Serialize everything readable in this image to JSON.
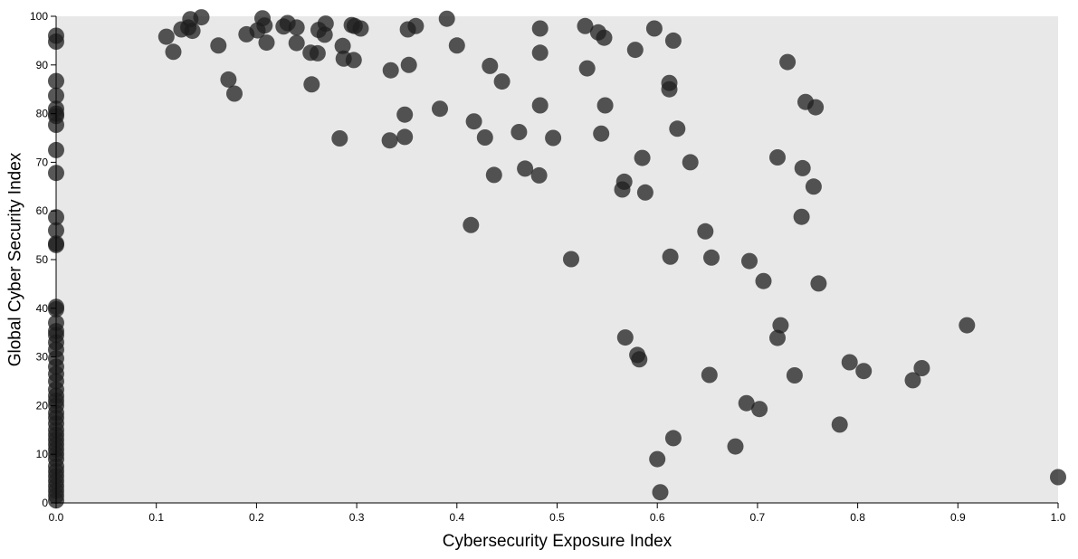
{
  "chart_data": {
    "type": "scatter",
    "xlabel": "Cybersecurity Exposure Index",
    "ylabel": "Global Cyber Security Index",
    "xlim": [
      0,
      1
    ],
    "ylim": [
      0,
      100
    ],
    "x_ticks": [
      "0.0",
      "0.1",
      "0.2",
      "0.3",
      "0.4",
      "0.5",
      "0.6",
      "0.7",
      "0.8",
      "0.9",
      "1.0"
    ],
    "y_ticks": [
      "0",
      "10",
      "20",
      "30",
      "40",
      "50",
      "60",
      "70",
      "80",
      "90",
      "100"
    ],
    "grid": false,
    "colors": {
      "plot_bg": "#e8e8e8",
      "point": "#1f1f1f",
      "axis": "#000000"
    },
    "points": [
      {
        "x": 0,
        "y": 96
      },
      {
        "x": 0,
        "y": 94.8
      },
      {
        "x": 0,
        "y": 86.7
      },
      {
        "x": 0,
        "y": 83.7
      },
      {
        "x": 0,
        "y": 81
      },
      {
        "x": 0,
        "y": 80
      },
      {
        "x": 0,
        "y": 79.5
      },
      {
        "x": 0,
        "y": 77.7
      },
      {
        "x": 0,
        "y": 72.5
      },
      {
        "x": 0,
        "y": 67.8
      },
      {
        "x": 0,
        "y": 58.7
      },
      {
        "x": 0,
        "y": 56
      },
      {
        "x": 0,
        "y": 53.3
      },
      {
        "x": 0,
        "y": 53
      },
      {
        "x": 0,
        "y": 40.3
      },
      {
        "x": 0,
        "y": 39.8
      },
      {
        "x": 0,
        "y": 37
      },
      {
        "x": 0,
        "y": 35.3
      },
      {
        "x": 0,
        "y": 34.5
      },
      {
        "x": 0,
        "y": 33
      },
      {
        "x": 0,
        "y": 31.5
      },
      {
        "x": 0,
        "y": 29.7
      },
      {
        "x": 0,
        "y": 28
      },
      {
        "x": 0,
        "y": 26.5
      },
      {
        "x": 0,
        "y": 25
      },
      {
        "x": 0,
        "y": 23.3
      },
      {
        "x": 0,
        "y": 22
      },
      {
        "x": 0,
        "y": 21
      },
      {
        "x": 0,
        "y": 20
      },
      {
        "x": 0,
        "y": 18.5
      },
      {
        "x": 0,
        "y": 17.5
      },
      {
        "x": 0,
        "y": 16.3
      },
      {
        "x": 0,
        "y": 15
      },
      {
        "x": 0,
        "y": 14
      },
      {
        "x": 0,
        "y": 13
      },
      {
        "x": 0,
        "y": 12
      },
      {
        "x": 0,
        "y": 11
      },
      {
        "x": 0,
        "y": 10
      },
      {
        "x": 0,
        "y": 9
      },
      {
        "x": 0,
        "y": 7.5
      },
      {
        "x": 0,
        "y": 6.5
      },
      {
        "x": 0,
        "y": 5.5
      },
      {
        "x": 0,
        "y": 4.5
      },
      {
        "x": 0,
        "y": 3.5
      },
      {
        "x": 0,
        "y": 2.5
      },
      {
        "x": 0,
        "y": 1.5
      },
      {
        "x": 0,
        "y": 0.5
      },
      {
        "x": 0.11,
        "y": 95.8
      },
      {
        "x": 0.117,
        "y": 92.7
      },
      {
        "x": 0.125,
        "y": 97.3
      },
      {
        "x": 0.132,
        "y": 97.7
      },
      {
        "x": 0.134,
        "y": 99.4
      },
      {
        "x": 0.136,
        "y": 97
      },
      {
        "x": 0.145,
        "y": 99.8
      },
      {
        "x": 0.162,
        "y": 94
      },
      {
        "x": 0.172,
        "y": 87
      },
      {
        "x": 0.178,
        "y": 84.1
      },
      {
        "x": 0.19,
        "y": 96.3
      },
      {
        "x": 0.201,
        "y": 97.1
      },
      {
        "x": 0.206,
        "y": 99.6
      },
      {
        "x": 0.208,
        "y": 98.1
      },
      {
        "x": 0.21,
        "y": 94.6
      },
      {
        "x": 0.227,
        "y": 97.9
      },
      {
        "x": 0.231,
        "y": 98.6
      },
      {
        "x": 0.24,
        "y": 97.7
      },
      {
        "x": 0.24,
        "y": 94.5
      },
      {
        "x": 0.254,
        "y": 92.5
      },
      {
        "x": 0.255,
        "y": 86
      },
      {
        "x": 0.261,
        "y": 92.4
      },
      {
        "x": 0.262,
        "y": 97.2
      },
      {
        "x": 0.268,
        "y": 96.2
      },
      {
        "x": 0.269,
        "y": 98.5
      },
      {
        "x": 0.283,
        "y": 74.9
      },
      {
        "x": 0.286,
        "y": 93.9
      },
      {
        "x": 0.287,
        "y": 91.3
      },
      {
        "x": 0.295,
        "y": 98.2
      },
      {
        "x": 0.297,
        "y": 91
      },
      {
        "x": 0.298,
        "y": 98
      },
      {
        "x": 0.304,
        "y": 97.5
      },
      {
        "x": 0.333,
        "y": 74.5
      },
      {
        "x": 0.334,
        "y": 88.9
      },
      {
        "x": 0.348,
        "y": 79.8
      },
      {
        "x": 0.348,
        "y": 75.2
      },
      {
        "x": 0.351,
        "y": 97.3
      },
      {
        "x": 0.352,
        "y": 90
      },
      {
        "x": 0.359,
        "y": 98
      },
      {
        "x": 0.383,
        "y": 81
      },
      {
        "x": 0.39,
        "y": 99.5
      },
      {
        "x": 0.4,
        "y": 94
      },
      {
        "x": 0.414,
        "y": 57.1
      },
      {
        "x": 0.417,
        "y": 78.4
      },
      {
        "x": 0.428,
        "y": 75.1
      },
      {
        "x": 0.433,
        "y": 89.8
      },
      {
        "x": 0.437,
        "y": 67.4
      },
      {
        "x": 0.445,
        "y": 86.6
      },
      {
        "x": 0.462,
        "y": 76.2
      },
      {
        "x": 0.468,
        "y": 68.7
      },
      {
        "x": 0.482,
        "y": 67.3
      },
      {
        "x": 0.483,
        "y": 97.5
      },
      {
        "x": 0.483,
        "y": 92.5
      },
      {
        "x": 0.483,
        "y": 81.7
      },
      {
        "x": 0.496,
        "y": 75
      },
      {
        "x": 0.514,
        "y": 50.1
      },
      {
        "x": 0.528,
        "y": 98
      },
      {
        "x": 0.53,
        "y": 89.3
      },
      {
        "x": 0.541,
        "y": 96.7
      },
      {
        "x": 0.544,
        "y": 75.9
      },
      {
        "x": 0.547,
        "y": 95.6
      },
      {
        "x": 0.548,
        "y": 81.7
      },
      {
        "x": 0.565,
        "y": 64.4
      },
      {
        "x": 0.567,
        "y": 66
      },
      {
        "x": 0.568,
        "y": 34
      },
      {
        "x": 0.578,
        "y": 93.1
      },
      {
        "x": 0.58,
        "y": 30.4
      },
      {
        "x": 0.582,
        "y": 29.5
      },
      {
        "x": 0.585,
        "y": 70.9
      },
      {
        "x": 0.588,
        "y": 63.8
      },
      {
        "x": 0.597,
        "y": 97.5
      },
      {
        "x": 0.6,
        "y": 9
      },
      {
        "x": 0.603,
        "y": 2.2
      },
      {
        "x": 0.612,
        "y": 86.3
      },
      {
        "x": 0.612,
        "y": 85
      },
      {
        "x": 0.613,
        "y": 50.6
      },
      {
        "x": 0.616,
        "y": 95
      },
      {
        "x": 0.616,
        "y": 13.3
      },
      {
        "x": 0.62,
        "y": 76.9
      },
      {
        "x": 0.633,
        "y": 70
      },
      {
        "x": 0.648,
        "y": 55.8
      },
      {
        "x": 0.652,
        "y": 26.3
      },
      {
        "x": 0.654,
        "y": 50.4
      },
      {
        "x": 0.678,
        "y": 11.6
      },
      {
        "x": 0.689,
        "y": 20.5
      },
      {
        "x": 0.692,
        "y": 49.7
      },
      {
        "x": 0.702,
        "y": 19.3
      },
      {
        "x": 0.706,
        "y": 45.6
      },
      {
        "x": 0.72,
        "y": 71
      },
      {
        "x": 0.72,
        "y": 33.9
      },
      {
        "x": 0.723,
        "y": 36.5
      },
      {
        "x": 0.73,
        "y": 90.6
      },
      {
        "x": 0.737,
        "y": 26.2
      },
      {
        "x": 0.744,
        "y": 58.8
      },
      {
        "x": 0.745,
        "y": 68.8
      },
      {
        "x": 0.748,
        "y": 82.4
      },
      {
        "x": 0.756,
        "y": 65
      },
      {
        "x": 0.758,
        "y": 81.3
      },
      {
        "x": 0.761,
        "y": 45.1
      },
      {
        "x": 0.782,
        "y": 16.1
      },
      {
        "x": 0.792,
        "y": 28.9
      },
      {
        "x": 0.806,
        "y": 27.1
      },
      {
        "x": 0.855,
        "y": 25.2
      },
      {
        "x": 0.864,
        "y": 27.7
      },
      {
        "x": 0.909,
        "y": 36.5
      },
      {
        "x": 1.0,
        "y": 5.3
      }
    ]
  }
}
